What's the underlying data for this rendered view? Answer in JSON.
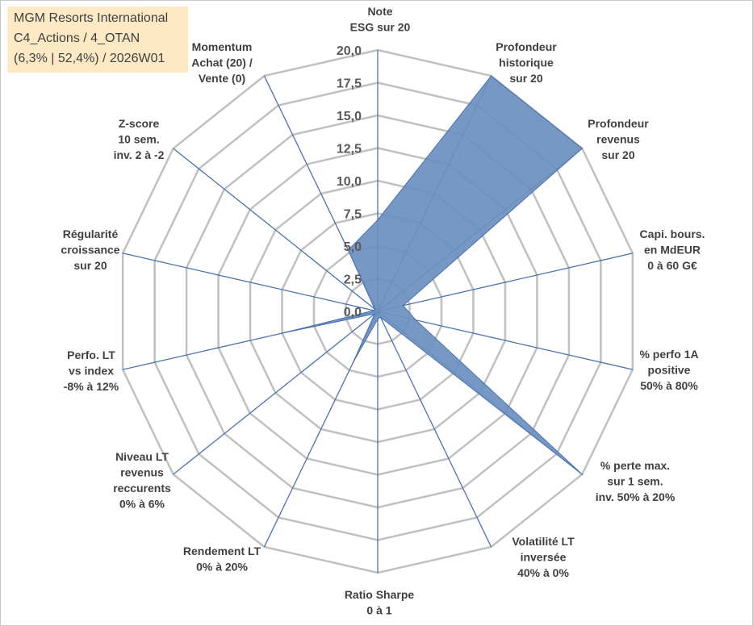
{
  "header": {
    "line1": "MGM Resorts International",
    "line2": "C4_Actions / 4_OTAN",
    "line3": "(6,3% | 52,4%) / 2026W01"
  },
  "chart_data": {
    "type": "radar",
    "rlim": [
      0,
      20
    ],
    "ticks": [
      "0,0",
      "2,5",
      "5,0",
      "7,5",
      "10,0",
      "12,5",
      "15,0",
      "17,5",
      "20,0"
    ],
    "axes": [
      [
        "Note",
        "ESG sur 20"
      ],
      [
        "Profondeur",
        "historique",
        "sur 20"
      ],
      [
        "Profondeur",
        "revenus",
        "sur 20"
      ],
      [
        "Capi. bours.",
        "en MdEUR",
        "0 à 60 G€"
      ],
      [
        "% perfo 1A",
        "positive",
        "50% à 80%"
      ],
      [
        "% perte max.",
        "sur 1 sem.",
        "inv. 50% à 20%"
      ],
      [
        "Volatilité LT",
        "inversée",
        "40% à 0%"
      ],
      [
        "Ratio Sharpe",
        "0 à 1"
      ],
      [
        "Rendement LT",
        "0% à 20%"
      ],
      [
        "Niveau LT",
        "revenus",
        "reccurents",
        "0% à 6%"
      ],
      [
        "Perfo. LT",
        "vs index",
        "-8% à 12%"
      ],
      [
        "Régularité",
        "croissance",
        "sur 20"
      ],
      [
        "Z-score",
        "10 sem.",
        "inv. 2 à -2"
      ],
      [
        "Momentum",
        "Achat (20) /",
        "Vente (0)"
      ]
    ],
    "values": [
      7.0,
      20.0,
      20.0,
      2.0,
      3.0,
      20.0,
      0.5,
      0.6,
      4.3,
      0.3,
      7.5,
      0.3,
      0.3,
      5.2
    ],
    "series_color": "#6b8fbf",
    "series_edge": "#4a72b0",
    "grid": true
  }
}
